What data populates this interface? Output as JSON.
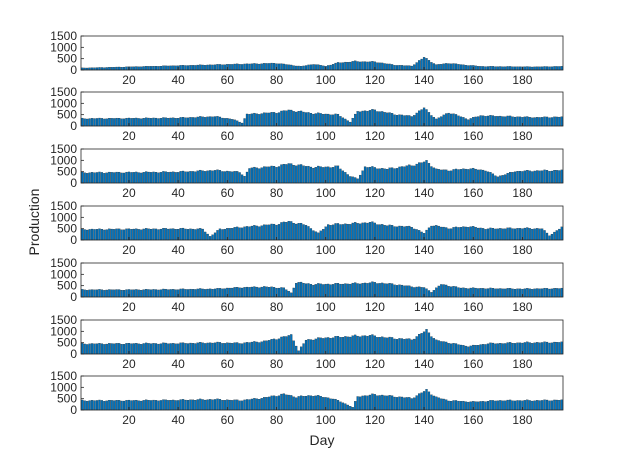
{
  "chart_data": {
    "type": "bar",
    "layout": "7 stacked subplots sharing x axis",
    "xlabel": "Day",
    "ylabel": "Production",
    "x_range": [
      1,
      196
    ],
    "x_ticks": [
      20,
      40,
      60,
      80,
      100,
      120,
      140,
      160,
      180
    ],
    "ylim": [
      0,
      1500
    ],
    "y_ticks": [
      0,
      500,
      1000,
      1500
    ],
    "bar_color": "#0072BD",
    "bar_edge_color": "#1a1a1a",
    "grid": false,
    "box": true,
    "series": [
      {
        "baseline": 90,
        "breaks": [
          [
            80,
            300
          ],
          [
            90,
            160
          ],
          [
            95,
            260
          ],
          [
            100,
            170
          ],
          [
            105,
            320
          ],
          [
            112,
            380
          ],
          [
            120,
            360
          ],
          [
            128,
            220
          ],
          [
            135,
            180
          ],
          [
            140,
            560
          ],
          [
            145,
            230
          ],
          [
            150,
            300
          ],
          [
            156,
            230
          ],
          [
            163,
            160
          ],
          [
            175,
            150
          ],
          [
            185,
            140
          ],
          [
            196,
            160
          ]
        ]
      },
      {
        "baseline": 330,
        "breaks": [
          [
            20,
            340
          ],
          [
            40,
            360
          ],
          [
            55,
            420
          ],
          [
            62,
            300
          ],
          [
            66,
            140
          ],
          [
            68,
            520
          ],
          [
            80,
            600
          ],
          [
            85,
            700
          ],
          [
            95,
            560
          ],
          [
            105,
            500
          ],
          [
            110,
            180
          ],
          [
            113,
            650
          ],
          [
            120,
            700
          ],
          [
            128,
            520
          ],
          [
            135,
            430
          ],
          [
            140,
            800
          ],
          [
            145,
            300
          ],
          [
            150,
            600
          ],
          [
            158,
            300
          ],
          [
            163,
            460
          ],
          [
            175,
            420
          ],
          [
            185,
            380
          ],
          [
            196,
            400
          ]
        ]
      },
      {
        "baseline": 460,
        "breaks": [
          [
            20,
            470
          ],
          [
            40,
            490
          ],
          [
            55,
            560
          ],
          [
            65,
            480
          ],
          [
            67,
            300
          ],
          [
            69,
            650
          ],
          [
            80,
            740
          ],
          [
            85,
            850
          ],
          [
            95,
            700
          ],
          [
            105,
            720
          ],
          [
            110,
            300
          ],
          [
            113,
            190
          ],
          [
            116,
            720
          ],
          [
            125,
            620
          ],
          [
            135,
            780
          ],
          [
            141,
            960
          ],
          [
            145,
            600
          ],
          [
            150,
            560
          ],
          [
            158,
            640
          ],
          [
            165,
            560
          ],
          [
            170,
            280
          ],
          [
            177,
            520
          ],
          [
            185,
            540
          ],
          [
            196,
            560
          ]
        ]
      },
      {
        "baseline": 470,
        "breaks": [
          [
            20,
            480
          ],
          [
            40,
            500
          ],
          [
            50,
            480
          ],
          [
            53,
            160
          ],
          [
            57,
            480
          ],
          [
            65,
            560
          ],
          [
            80,
            700
          ],
          [
            85,
            820
          ],
          [
            92,
            660
          ],
          [
            97,
            300
          ],
          [
            101,
            680
          ],
          [
            110,
            720
          ],
          [
            118,
            780
          ],
          [
            125,
            640
          ],
          [
            135,
            580
          ],
          [
            140,
            300
          ],
          [
            143,
            660
          ],
          [
            150,
            520
          ],
          [
            158,
            600
          ],
          [
            165,
            500
          ],
          [
            180,
            520
          ],
          [
            188,
            500
          ],
          [
            191,
            200
          ],
          [
            196,
            560
          ]
        ]
      },
      {
        "baseline": 320,
        "breaks": [
          [
            20,
            320
          ],
          [
            40,
            340
          ],
          [
            55,
            360
          ],
          [
            65,
            420
          ],
          [
            75,
            450
          ],
          [
            83,
            400
          ],
          [
            86,
            180
          ],
          [
            88,
            650
          ],
          [
            95,
            560
          ],
          [
            105,
            580
          ],
          [
            113,
            600
          ],
          [
            120,
            640
          ],
          [
            128,
            560
          ],
          [
            135,
            460
          ],
          [
            140,
            420
          ],
          [
            143,
            220
          ],
          [
            147,
            560
          ],
          [
            155,
            400
          ],
          [
            165,
            380
          ],
          [
            180,
            360
          ],
          [
            196,
            380
          ]
        ]
      },
      {
        "baseline": 450,
        "breaks": [
          [
            20,
            460
          ],
          [
            40,
            470
          ],
          [
            55,
            500
          ],
          [
            65,
            480
          ],
          [
            75,
            560
          ],
          [
            83,
            750
          ],
          [
            86,
            840
          ],
          [
            89,
            140
          ],
          [
            92,
            620
          ],
          [
            100,
            720
          ],
          [
            110,
            780
          ],
          [
            118,
            820
          ],
          [
            125,
            720
          ],
          [
            135,
            640
          ],
          [
            141,
            1050
          ],
          [
            145,
            600
          ],
          [
            150,
            500
          ],
          [
            158,
            340
          ],
          [
            166,
            460
          ],
          [
            180,
            500
          ],
          [
            196,
            520
          ]
        ]
      },
      {
        "baseline": 420,
        "breaks": [
          [
            20,
            420
          ],
          [
            40,
            440
          ],
          [
            55,
            470
          ],
          [
            65,
            420
          ],
          [
            75,
            540
          ],
          [
            83,
            700
          ],
          [
            88,
            580
          ],
          [
            95,
            650
          ],
          [
            103,
            500
          ],
          [
            108,
            280
          ],
          [
            111,
            120
          ],
          [
            113,
            600
          ],
          [
            120,
            680
          ],
          [
            128,
            600
          ],
          [
            135,
            520
          ],
          [
            141,
            880
          ],
          [
            145,
            560
          ],
          [
            150,
            420
          ],
          [
            160,
            360
          ],
          [
            170,
            420
          ],
          [
            185,
            420
          ],
          [
            196,
            440
          ]
        ]
      }
    ]
  }
}
